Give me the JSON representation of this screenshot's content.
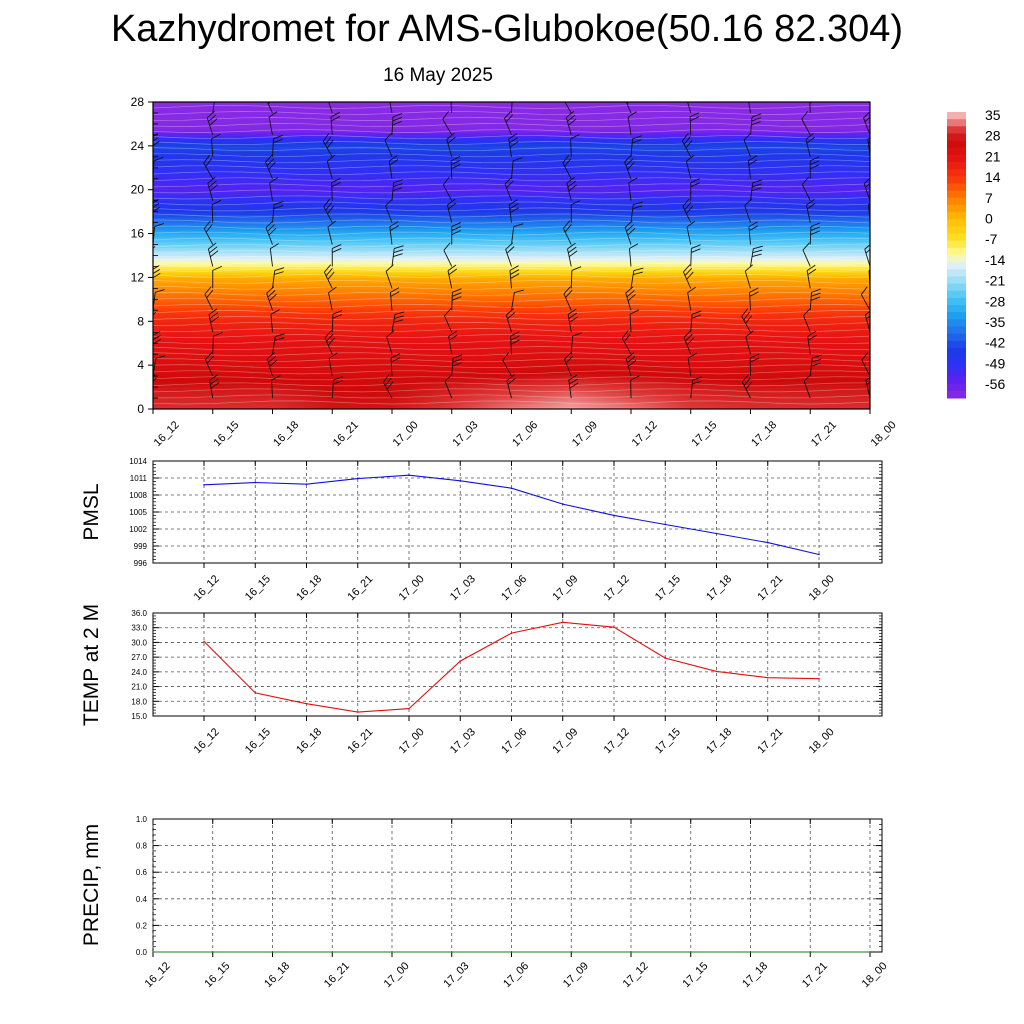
{
  "title": "Kazhydromet for AMS-Glubokoe(50.16 82.304)",
  "subtitle": "16 May 2025",
  "colors": {
    "pmsl_line": "#1010e0",
    "temp_line": "#e01010",
    "precip_line": "#1a7a1a",
    "grid": "#555555",
    "barb": "#111111"
  },
  "chart_data": [
    {
      "type": "heatmap",
      "title": "",
      "xlabel": "",
      "ylabel": "",
      "x": [
        "16_12",
        "16_15",
        "16_18",
        "16_21",
        "17_00",
        "17_03",
        "17_06",
        "17_09",
        "17_12",
        "17_15",
        "17_18",
        "17_21",
        "18_00"
      ],
      "y_ticks": [
        0,
        4,
        8,
        12,
        16,
        20,
        24,
        28
      ],
      "ylim": [
        0,
        28
      ],
      "colorbar": {
        "labels": [
          "35",
          "28",
          "21",
          "14",
          "7",
          "0",
          "-7",
          "-14",
          "-21",
          "-28",
          "-35",
          "-42",
          "-49",
          "-56"
        ],
        "range": [
          -63,
          38
        ]
      },
      "temperature_profile": [
        {
          "level": 0,
          "value": 31
        },
        {
          "level": 2,
          "value": 29
        },
        {
          "level": 4,
          "value": 25
        },
        {
          "level": 6,
          "value": 22
        },
        {
          "level": 8,
          "value": 18
        },
        {
          "level": 10,
          "value": 10
        },
        {
          "level": 12,
          "value": 2
        },
        {
          "level": 13,
          "value": -10
        },
        {
          "level": 14,
          "value": -18
        },
        {
          "level": 16,
          "value": -32
        },
        {
          "level": 18,
          "value": -46
        },
        {
          "level": 20,
          "value": -56
        },
        {
          "level": 22,
          "value": -51
        },
        {
          "level": 24,
          "value": -44
        },
        {
          "level": 25.5,
          "value": -62
        },
        {
          "level": 28,
          "value": -63
        }
      ],
      "warm_core": [
        {
          "x": "17_09",
          "level": 1.5,
          "value": 36
        }
      ],
      "wind_barbs": true
    },
    {
      "type": "line",
      "ylabel": "PMSL",
      "xlabel": "",
      "y_ticks": [
        "996",
        "999",
        "1002",
        "1005",
        "1008",
        "1011",
        "1014"
      ],
      "ylim": [
        996,
        1014
      ],
      "x": [
        "16_12",
        "16_15",
        "16_18",
        "16_21",
        "17_00",
        "17_03",
        "17_06",
        "17_09",
        "17_12",
        "17_15",
        "17_18",
        "17_21",
        "18_00"
      ],
      "series": [
        {
          "values": [
            1009.8,
            1010.2,
            1009.9,
            1010.9,
            1011.5,
            1010.5,
            1009.2,
            1006.4,
            1004.4,
            1002.8,
            1001.2,
            999.6,
            997.5
          ]
        }
      ]
    },
    {
      "type": "line",
      "ylabel": "TEMP at 2 M",
      "xlabel": "",
      "y_ticks": [
        "15.0",
        "18.0",
        "21.0",
        "24.0",
        "27.0",
        "30.0",
        "33.0",
        "36.0"
      ],
      "ylim": [
        15,
        36
      ],
      "x": [
        "16_12",
        "16_15",
        "16_18",
        "16_21",
        "17_00",
        "17_03",
        "17_06",
        "17_09",
        "17_12",
        "17_15",
        "17_18",
        "17_21",
        "18_00"
      ],
      "series": [
        {
          "values": [
            30.2,
            19.7,
            17.5,
            15.8,
            16.5,
            26.2,
            31.9,
            34.1,
            33.1,
            26.8,
            24.1,
            22.8,
            22.6
          ]
        }
      ]
    },
    {
      "type": "line",
      "ylabel": "PRECIP, mm",
      "xlabel": "",
      "y_ticks": [
        "0.0",
        "0.2",
        "0.4",
        "0.6",
        "0.8",
        "1.0"
      ],
      "ylim": [
        0,
        1
      ],
      "x": [
        "16_12",
        "16_15",
        "16_18",
        "16_21",
        "17_00",
        "17_03",
        "17_06",
        "17_09",
        "17_12",
        "17_15",
        "17_18",
        "17_21",
        "18_00"
      ],
      "series": [
        {
          "values": [
            0,
            0,
            0,
            0,
            0,
            0,
            0,
            0,
            0,
            0,
            0,
            0,
            0
          ]
        }
      ]
    }
  ]
}
